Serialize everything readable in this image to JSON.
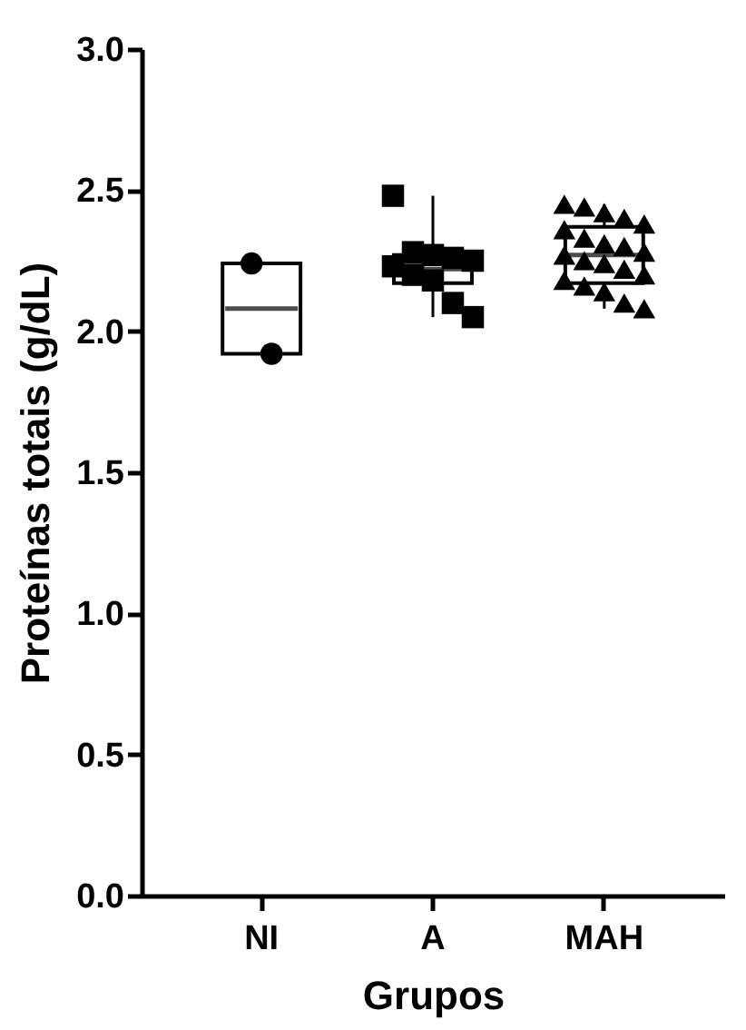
{
  "chart_data": {
    "type": "box",
    "xlabel": "Grupos",
    "ylabel": "Proteínas totais (g/dL)",
    "categories": [
      "NI",
      "A",
      "MAH"
    ],
    "ylim": [
      0,
      3
    ],
    "yticks": [
      {
        "value": 0,
        "label": "0.0"
      },
      {
        "value": 0.5,
        "label": "0.5"
      },
      {
        "value": 1,
        "label": "1.0"
      },
      {
        "value": 1.5,
        "label": "1.5"
      },
      {
        "value": 2,
        "label": "2.0"
      },
      {
        "value": 2.5,
        "label": "2.5"
      },
      {
        "value": 3,
        "label": "3.0"
      }
    ],
    "grid": false,
    "boxes": [
      {
        "low": 1.92,
        "q1": 1.92,
        "median": 2.08,
        "q3": 2.24,
        "high": 2.24
      },
      {
        "low": 2.05,
        "q1": 2.17,
        "median": 2.22,
        "q3": 2.27,
        "high": 2.48
      },
      {
        "low": 2.08,
        "q1": 2.17,
        "median": 2.27,
        "q3": 2.37,
        "high": 2.45
      }
    ],
    "series": [
      {
        "type": "scatter",
        "color": "#000000",
        "marker": "circle",
        "x": [
          "NI",
          "NI"
        ],
        "values": [
          2.24,
          1.92
        ]
      },
      {
        "type": "scatter",
        "color": "#000000",
        "marker": "square",
        "x": [
          "A",
          "A",
          "A",
          "A",
          "A",
          "A",
          "A",
          "A",
          "A",
          "A"
        ],
        "values": [
          2.48,
          2.28,
          2.27,
          2.26,
          2.25,
          2.23,
          2.2,
          2.18,
          2.1,
          2.05
        ]
      },
      {
        "type": "scatter",
        "color": "#000000",
        "marker": "triangle",
        "x": [
          "MAH",
          "MAH",
          "MAH",
          "MAH",
          "MAH",
          "MAH",
          "MAH",
          "MAH",
          "MAH",
          "MAH",
          "MAH",
          "MAH",
          "MAH",
          "MAH",
          "MAH",
          "MAH",
          "MAH",
          "MAH",
          "MAH",
          "MAH"
        ],
        "values": [
          2.45,
          2.44,
          2.42,
          2.4,
          2.38,
          2.36,
          2.33,
          2.31,
          2.3,
          2.28,
          2.27,
          2.25,
          2.24,
          2.22,
          2.2,
          2.18,
          2.16,
          2.14,
          2.1,
          2.08
        ]
      }
    ]
  }
}
